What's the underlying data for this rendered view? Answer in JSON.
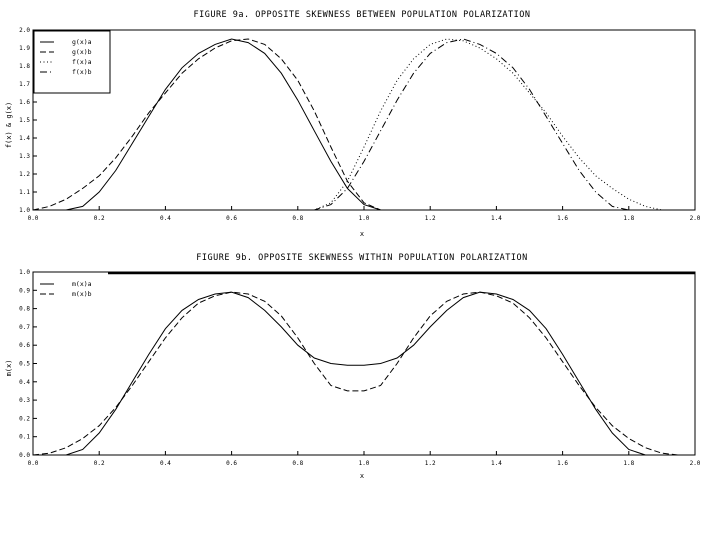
{
  "chart_data": [
    {
      "type": "line",
      "title": "FIGURE 9a. OPPOSITE SKEWNESS BETWEEN POPULATION POLARIZATION",
      "xlabel": "x",
      "ylabel": "f(x) & g(x)",
      "xlim": [
        0.0,
        2.0
      ],
      "ylim": [
        1.0,
        2.0
      ],
      "xticks": [
        "0.0",
        "0.2",
        "0.4",
        "0.6",
        "0.8",
        "1.0",
        "1.2",
        "1.4",
        "1.6",
        "1.8",
        "2.0"
      ],
      "yticks": [
        "1.0",
        "1.1",
        "1.2",
        "1.3",
        "1.4",
        "1.5",
        "1.6",
        "1.7",
        "1.8",
        "1.9",
        "2.0"
      ],
      "legend_position": "top-left",
      "x": [
        0.0,
        0.05,
        0.1,
        0.15,
        0.2,
        0.25,
        0.3,
        0.35,
        0.4,
        0.45,
        0.5,
        0.55,
        0.6,
        0.65,
        0.7,
        0.75,
        0.8,
        0.85,
        0.9,
        0.95,
        1.0,
        1.05,
        1.1,
        1.15,
        1.2,
        1.25,
        1.3,
        1.35,
        1.4,
        1.45,
        1.5,
        1.55,
        1.6,
        1.65,
        1.7,
        1.75,
        1.8,
        1.85,
        1.9,
        1.95,
        2.0
      ],
      "series": [
        {
          "name": "g(x)a",
          "style": "solid",
          "values": [
            1.0,
            1.0,
            1.0,
            1.02,
            1.1,
            1.22,
            1.37,
            1.52,
            1.67,
            1.79,
            1.87,
            1.92,
            1.95,
            1.93,
            1.87,
            1.76,
            1.61,
            1.44,
            1.27,
            1.12,
            1.03,
            1.0,
            1.0,
            1.0,
            1.0,
            1.0,
            1.0,
            1.0,
            1.0,
            1.0,
            1.0,
            1.0,
            1.0,
            1.0,
            1.0,
            1.0,
            1.0,
            1.0,
            1.0,
            1.0,
            1.0
          ]
        },
        {
          "name": "g(x)b",
          "style": "dashed",
          "values": [
            1.0,
            1.02,
            1.06,
            1.12,
            1.19,
            1.29,
            1.41,
            1.54,
            1.65,
            1.76,
            1.84,
            1.9,
            1.94,
            1.95,
            1.92,
            1.84,
            1.72,
            1.55,
            1.35,
            1.16,
            1.04,
            1.0,
            1.0,
            1.0,
            1.0,
            1.0,
            1.0,
            1.0,
            1.0,
            1.0,
            1.0,
            1.0,
            1.0,
            1.0,
            1.0,
            1.0,
            1.0,
            1.0,
            1.0,
            1.0,
            1.0
          ]
        },
        {
          "name": "f(x)a",
          "style": "dotted",
          "values": [
            1.0,
            1.0,
            1.0,
            1.0,
            1.0,
            1.0,
            1.0,
            1.0,
            1.0,
            1.0,
            1.0,
            1.0,
            1.0,
            1.0,
            1.0,
            1.0,
            1.0,
            1.0,
            1.04,
            1.16,
            1.35,
            1.55,
            1.72,
            1.84,
            1.92,
            1.95,
            1.94,
            1.9,
            1.84,
            1.76,
            1.65,
            1.54,
            1.41,
            1.29,
            1.19,
            1.12,
            1.06,
            1.02,
            1.0,
            1.0,
            1.0
          ]
        },
        {
          "name": "f(x)b",
          "style": "dashdot",
          "values": [
            1.0,
            1.0,
            1.0,
            1.0,
            1.0,
            1.0,
            1.0,
            1.0,
            1.0,
            1.0,
            1.0,
            1.0,
            1.0,
            1.0,
            1.0,
            1.0,
            1.0,
            1.0,
            1.03,
            1.12,
            1.27,
            1.44,
            1.61,
            1.76,
            1.87,
            1.93,
            1.95,
            1.92,
            1.87,
            1.79,
            1.67,
            1.52,
            1.37,
            1.22,
            1.1,
            1.02,
            1.0,
            1.0,
            1.0,
            1.0,
            1.0
          ]
        }
      ]
    },
    {
      "type": "line",
      "title": "FIGURE 9b. OPPOSITE SKEWNESS WITHIN POPULATION POLARIZATION",
      "xlabel": "x",
      "ylabel": "m(x)",
      "xlim": [
        0.0,
        2.0
      ],
      "ylim": [
        0.0,
        1.0
      ],
      "xticks": [
        "0.0",
        "0.2",
        "0.4",
        "0.6",
        "0.8",
        "1.0",
        "1.2",
        "1.4",
        "1.6",
        "1.8",
        "2.0"
      ],
      "yticks": [
        "0.0",
        "0.1",
        "0.2",
        "0.3",
        "0.4",
        "0.5",
        "0.6",
        "0.7",
        "0.8",
        "0.9",
        "1.0"
      ],
      "legend_position": "top-left",
      "x": [
        0.0,
        0.05,
        0.1,
        0.15,
        0.2,
        0.25,
        0.3,
        0.35,
        0.4,
        0.45,
        0.5,
        0.55,
        0.6,
        0.65,
        0.7,
        0.75,
        0.8,
        0.85,
        0.9,
        0.95,
        1.0,
        1.05,
        1.1,
        1.15,
        1.2,
        1.25,
        1.3,
        1.35,
        1.4,
        1.45,
        1.5,
        1.55,
        1.6,
        1.65,
        1.7,
        1.75,
        1.8,
        1.85,
        1.9,
        1.95,
        2.0
      ],
      "series": [
        {
          "name": "m(x)a",
          "style": "solid",
          "values": [
            0.0,
            0.0,
            0.0,
            0.03,
            0.12,
            0.25,
            0.4,
            0.55,
            0.69,
            0.79,
            0.85,
            0.88,
            0.89,
            0.86,
            0.79,
            0.7,
            0.6,
            0.53,
            0.5,
            0.49,
            0.49,
            0.5,
            0.53,
            0.6,
            0.7,
            0.79,
            0.86,
            0.89,
            0.88,
            0.85,
            0.79,
            0.69,
            0.55,
            0.4,
            0.25,
            0.12,
            0.03,
            0.0,
            0.0,
            0.0,
            0.0
          ]
        },
        {
          "name": "m(x)b",
          "style": "dashed",
          "values": [
            0.0,
            0.01,
            0.04,
            0.09,
            0.16,
            0.26,
            0.38,
            0.51,
            0.64,
            0.75,
            0.83,
            0.87,
            0.89,
            0.88,
            0.84,
            0.76,
            0.64,
            0.5,
            0.38,
            0.35,
            0.35,
            0.38,
            0.5,
            0.64,
            0.76,
            0.84,
            0.88,
            0.89,
            0.87,
            0.83,
            0.75,
            0.64,
            0.51,
            0.38,
            0.26,
            0.16,
            0.09,
            0.04,
            0.01,
            0.0,
            0.0
          ]
        }
      ]
    }
  ]
}
